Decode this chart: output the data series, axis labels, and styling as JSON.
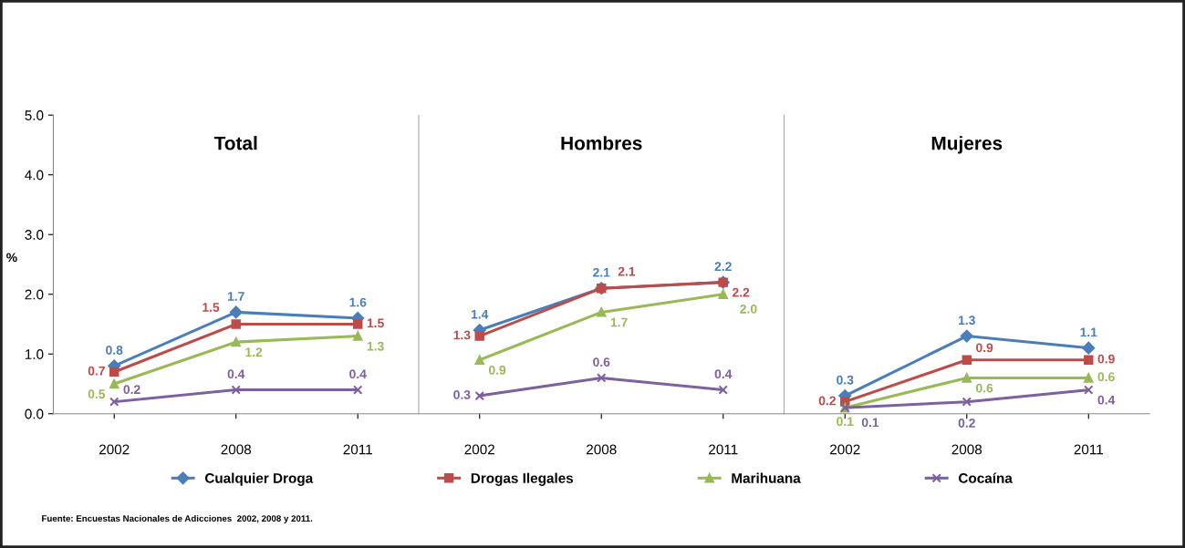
{
  "chart_data": [
    {
      "type": "line",
      "title": "Total",
      "ylabel": "%",
      "categories": [
        "2002",
        "2008",
        "2011"
      ],
      "ylim": [
        0,
        5
      ],
      "yticks": [
        {
          "value": 0,
          "label": "0.0"
        },
        {
          "value": 1,
          "label": "1.0"
        },
        {
          "value": 2,
          "label": "2.0"
        },
        {
          "value": 3,
          "label": "3.0"
        },
        {
          "value": 4,
          "label": "4.0"
        },
        {
          "value": 5,
          "label": "5.0"
        }
      ],
      "legend": "bottom",
      "annotations": [
        "Fuente: Encuestas Nacionales de Adicciones  2002, 2008 y 2011."
      ],
      "series": [
        {
          "name": "Cualquier Droga",
          "color": "#4a7ebb",
          "marker": "diamond",
          "values": [
            0.8,
            1.7,
            1.6
          ],
          "value_labels": [
            "0.8",
            "1.7",
            "1.6"
          ]
        },
        {
          "name": "Drogas Ilegales",
          "color": "#be4b48",
          "marker": "square",
          "values": [
            0.7,
            1.5,
            1.5
          ],
          "value_labels": [
            "0.7",
            "1.5",
            "1.5"
          ]
        },
        {
          "name": "Marihuana",
          "color": "#98b954",
          "marker": "triangle",
          "values": [
            0.5,
            1.2,
            1.3
          ],
          "value_labels": [
            "0.5",
            "1.2",
            "1.3"
          ]
        },
        {
          "name": "Cocaína",
          "color": "#7d60a0",
          "marker": "cross",
          "values": [
            0.2,
            0.4,
            0.4
          ],
          "value_labels": [
            "0.2",
            "0.4",
            "0.4"
          ]
        }
      ]
    },
    {
      "type": "line",
      "title": "Hombres",
      "categories": [
        "2002",
        "2008",
        "2011"
      ],
      "ylim": [
        0,
        5
      ],
      "tick_labels": "x",
      "series": [
        {
          "color": "#4a7ebb",
          "marker": "diamond",
          "values": [
            1.4,
            2.1,
            2.2
          ],
          "value_labels": [
            "1.4",
            "2.1",
            "2.2"
          ]
        },
        {
          "color": "#be4b48",
          "marker": "square",
          "values": [
            1.3,
            2.1,
            2.2
          ],
          "value_labels": [
            "1.3",
            "2.1",
            "2.2"
          ]
        },
        {
          "color": "#98b954",
          "marker": "triangle",
          "values": [
            0.9,
            1.7,
            2.0
          ],
          "value_labels": [
            "0.9",
            "1.7",
            "2.0"
          ]
        },
        {
          "color": "#7d60a0",
          "marker": "cross",
          "values": [
            0.3,
            0.6,
            0.4
          ],
          "value_labels": [
            "0.3",
            "0.6",
            "0.4"
          ]
        }
      ]
    },
    {
      "type": "line",
      "title": "Mujeres",
      "categories": [
        "2002",
        "2008",
        "2011"
      ],
      "ylim": [
        0,
        5
      ],
      "tick_labels": "x",
      "series": [
        {
          "color": "#4a7ebb",
          "marker": "diamond",
          "values": [
            0.3,
            1.3,
            1.1
          ],
          "value_labels": [
            "0.3",
            "1.3",
            "1.1"
          ]
        },
        {
          "color": "#be4b48",
          "marker": "square",
          "values": [
            0.2,
            0.9,
            0.9
          ],
          "value_labels": [
            "0.2",
            "0.9",
            "0.9"
          ]
        },
        {
          "color": "#98b954",
          "marker": "triangle",
          "values": [
            0.1,
            0.6,
            0.6
          ],
          "value_labels": [
            "0.1",
            "0.6",
            "0.6"
          ]
        },
        {
          "color": "#7d60a0",
          "marker": "cross",
          "values": [
            0.1,
            0.2,
            0.4
          ],
          "value_labels": [
            "0.1",
            "0.2",
            "0.4"
          ]
        }
      ]
    }
  ]
}
